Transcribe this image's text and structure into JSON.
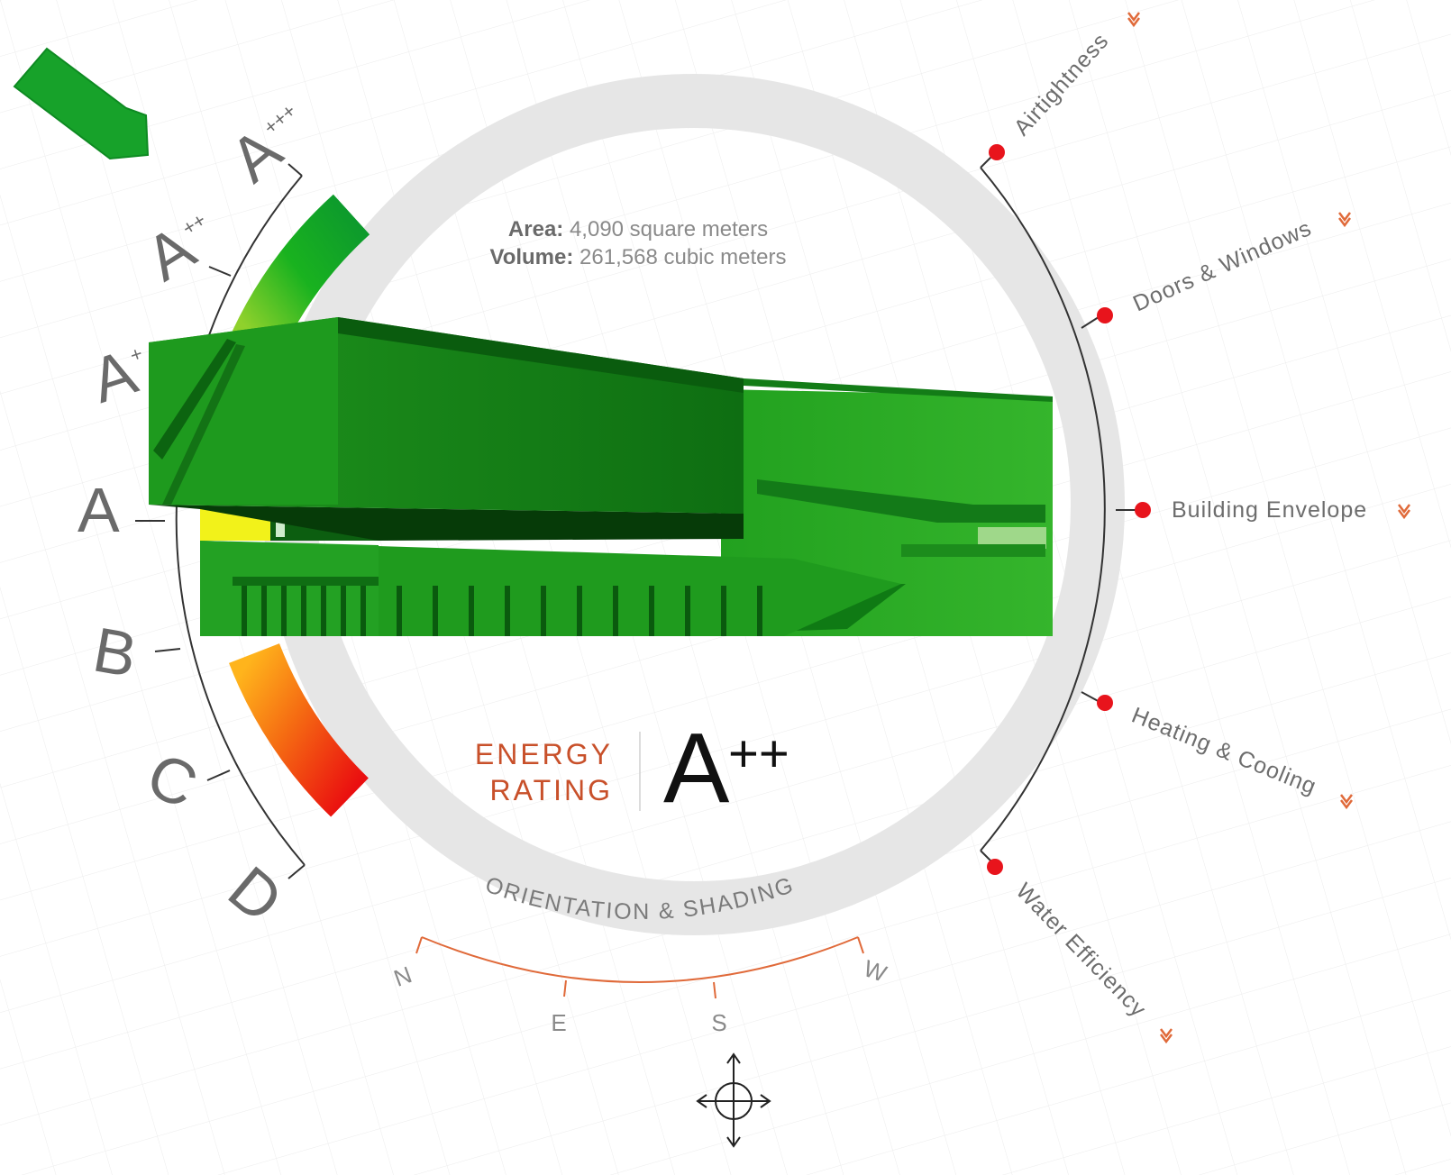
{
  "building_info": {
    "area_label": "Area:",
    "area_value": " 4,090 square meters",
    "volume_label": "Volume:",
    "volume_value": " 261,568 cubic meters"
  },
  "rating": {
    "label_line1": "ENERGY",
    "label_line2": "RATING",
    "grade": "A",
    "grade_suffix": "++"
  },
  "grade_scale": [
    {
      "grade": "A",
      "suffix": "+++"
    },
    {
      "grade": "A",
      "suffix": "++"
    },
    {
      "grade": "A",
      "suffix": "+"
    },
    {
      "grade": "A",
      "suffix": ""
    },
    {
      "grade": "B",
      "suffix": ""
    },
    {
      "grade": "C",
      "suffix": ""
    },
    {
      "grade": "D",
      "suffix": ""
    }
  ],
  "categories": [
    {
      "label": "Airtightness"
    },
    {
      "label": "Doors & Windows"
    },
    {
      "label": "Building Envelope"
    },
    {
      "label": "Heating & Cooling"
    },
    {
      "label": "Water Efficiency"
    }
  ],
  "orientation": {
    "ring_label": "ORIENTATION & SHADING",
    "compass": [
      "N",
      "E",
      "S",
      "W"
    ]
  },
  "colors": {
    "ring": "#e6e6e6",
    "marker": "#e8141c",
    "accent": "#c8502a",
    "building_dark": "#0c6e14",
    "building_light": "#2ea92a"
  },
  "icons": {
    "current_grade_pointer": "pointer-arrow-icon",
    "category_expand": "chevron-down-icon",
    "rotate_control": "crosshair-move-icon"
  }
}
